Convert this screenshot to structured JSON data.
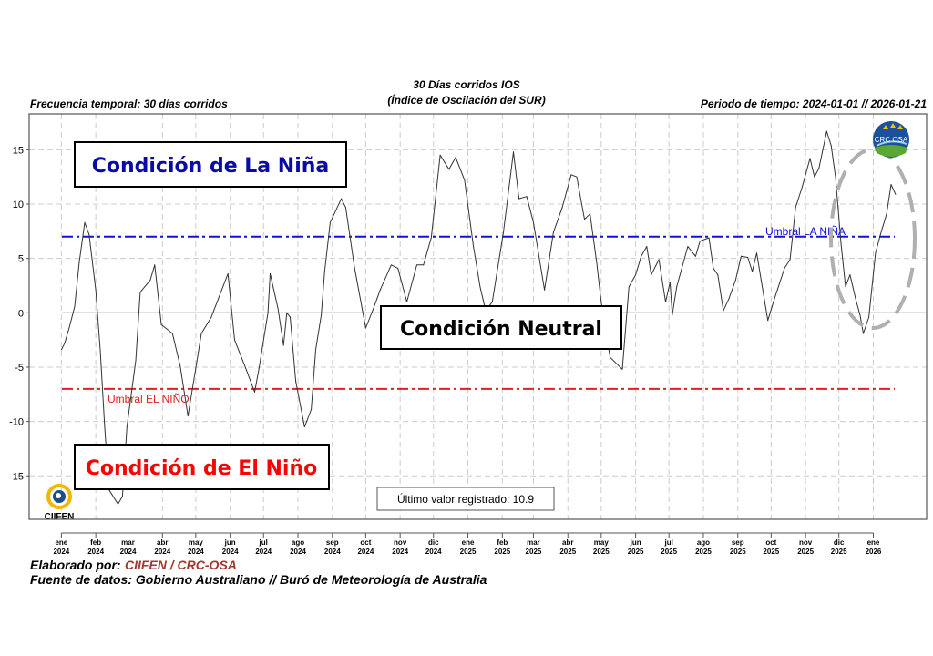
{
  "header": {
    "title_line1": "30 Días corridos IOS",
    "title_line2": "(Índice de Oscilación del SUR)",
    "left": "Frecuencia temporal: 30 días corridos",
    "right": "Periodo de tiempo: 2024-01-01 // 2026-01-21"
  },
  "annotations": {
    "la_nina": "Condición de La Niña",
    "neutral": "Condición Neutral",
    "el_nino": "Condición de El Niño",
    "umbral_la_nina": "Umbral LA NIÑA",
    "umbral_el_nino": "Umbral EL NIÑO",
    "last_value": "Último valor registrado: 10.9"
  },
  "logos": {
    "ciifen": "CIIFEN",
    "crc_osa": "CRC OSA"
  },
  "footer": {
    "elaborado_label": "Elaborado por:",
    "elaborado_value": "CIIFEN / CRC-OSA",
    "fuente": "Fuente de datos: Gobierno Australiano // Buró de Meteorología de Australia"
  },
  "colors": {
    "line": "#333333",
    "la_nina": "#1010e0",
    "el_nino": "#e02020",
    "la_nina_text": "#0a0aa8",
    "el_nino_text": "#ff0000",
    "footer_accent": "#a0392b",
    "highlight_ellipse": "#b0b0b0"
  },
  "chart_data": {
    "type": "line",
    "title": "30 Días corridos IOS (Índice de Oscilación del SUR)",
    "ylim": [
      -19,
      18.3
    ],
    "xlim": [
      "2023-12-03",
      "2026-02-18"
    ],
    "grid": true,
    "yticks": [
      -15,
      -10,
      -5,
      0,
      5,
      10,
      15
    ],
    "xticks": [
      {
        "date": "2024-01-01",
        "month": "ene",
        "year": "2024"
      },
      {
        "date": "2024-02-01",
        "month": "feb",
        "year": "2024"
      },
      {
        "date": "2024-03-01",
        "month": "mar",
        "year": "2024"
      },
      {
        "date": "2024-04-01",
        "month": "abr",
        "year": "2024"
      },
      {
        "date": "2024-05-01",
        "month": "may",
        "year": "2024"
      },
      {
        "date": "2024-06-01",
        "month": "jun",
        "year": "2024"
      },
      {
        "date": "2024-07-01",
        "month": "jul",
        "year": "2024"
      },
      {
        "date": "2024-08-01",
        "month": "ago",
        "year": "2024"
      },
      {
        "date": "2024-09-01",
        "month": "sep",
        "year": "2024"
      },
      {
        "date": "2024-10-01",
        "month": "oct",
        "year": "2024"
      },
      {
        "date": "2024-11-01",
        "month": "nov",
        "year": "2024"
      },
      {
        "date": "2024-12-01",
        "month": "dic",
        "year": "2024"
      },
      {
        "date": "2025-01-01",
        "month": "ene",
        "year": "2025"
      },
      {
        "date": "2025-02-01",
        "month": "feb",
        "year": "2025"
      },
      {
        "date": "2025-03-01",
        "month": "mar",
        "year": "2025"
      },
      {
        "date": "2025-04-01",
        "month": "abr",
        "year": "2025"
      },
      {
        "date": "2025-05-01",
        "month": "may",
        "year": "2025"
      },
      {
        "date": "2025-06-01",
        "month": "jun",
        "year": "2025"
      },
      {
        "date": "2025-07-01",
        "month": "jul",
        "year": "2025"
      },
      {
        "date": "2025-08-01",
        "month": "ago",
        "year": "2025"
      },
      {
        "date": "2025-09-01",
        "month": "sep",
        "year": "2025"
      },
      {
        "date": "2025-10-01",
        "month": "oct",
        "year": "2025"
      },
      {
        "date": "2025-11-01",
        "month": "nov",
        "year": "2025"
      },
      {
        "date": "2025-12-01",
        "month": "dic",
        "year": "2025"
      },
      {
        "date": "2026-01-01",
        "month": "ene",
        "year": "2026"
      }
    ],
    "thresholds": [
      {
        "name": "Umbral LA NIÑA",
        "value": 7
      },
      {
        "name": "Umbral EL NIÑO",
        "value": -7
      }
    ],
    "series": [
      {
        "x": [
          "2024-01-01",
          "2024-01-04",
          "2024-01-08",
          "2024-01-13",
          "2024-01-17",
          "2024-01-22",
          "2024-01-26",
          "2024-02-01",
          "2024-02-05",
          "2024-02-09",
          "2024-02-13",
          "2024-02-21",
          "2024-02-25",
          "2024-02-29",
          "2024-03-08",
          "2024-03-12",
          "2024-03-21",
          "2024-03-25",
          "2024-03-31",
          "2024-04-10",
          "2024-04-17",
          "2024-04-24",
          "2024-05-01",
          "2024-05-06",
          "2024-05-15",
          "2024-05-30",
          "2024-06-05",
          "2024-06-15",
          "2024-06-23",
          "2024-06-27",
          "2024-07-05",
          "2024-07-07",
          "2024-07-14",
          "2024-07-19",
          "2024-07-22",
          "2024-07-25",
          "2024-07-30",
          "2024-08-07",
          "2024-08-13",
          "2024-08-17",
          "2024-08-22",
          "2024-08-25",
          "2024-08-30",
          "2024-09-09",
          "2024-09-13",
          "2024-09-21",
          "2024-10-01",
          "2024-10-08",
          "2024-10-14",
          "2024-10-24",
          "2024-10-30",
          "2024-11-07",
          "2024-11-16",
          "2024-11-22",
          "2024-11-29",
          "2024-12-07",
          "2024-12-15",
          "2024-12-21",
          "2024-12-29",
          "2025-01-06",
          "2025-01-12",
          "2025-01-17",
          "2025-01-23",
          "2025-02-02",
          "2025-02-11",
          "2025-02-16",
          "2025-02-23",
          "2025-03-01",
          "2025-03-11",
          "2025-03-19",
          "2025-03-27",
          "2025-04-04",
          "2025-04-09",
          "2025-04-16",
          "2025-04-21",
          "2025-04-27",
          "2025-05-01",
          "2025-05-09",
          "2025-05-20",
          "2025-05-26",
          "2025-06-01",
          "2025-06-06",
          "2025-06-11",
          "2025-06-15",
          "2025-06-22",
          "2025-06-28",
          "2025-07-02",
          "2025-07-04",
          "2025-07-08",
          "2025-07-18",
          "2025-07-25",
          "2025-07-29",
          "2025-08-06",
          "2025-08-10",
          "2025-08-14",
          "2025-08-19",
          "2025-08-24",
          "2025-08-30",
          "2025-09-04",
          "2025-09-10",
          "2025-09-14",
          "2025-09-18",
          "2025-09-22",
          "2025-09-28",
          "2025-10-04",
          "2025-10-13",
          "2025-10-18",
          "2025-10-23",
          "2025-10-29",
          "2025-11-05",
          "2025-11-09",
          "2025-11-13",
          "2025-11-20",
          "2025-11-24",
          "2025-11-28",
          "2025-12-03",
          "2025-12-07",
          "2025-12-11",
          "2025-12-16",
          "2025-12-20",
          "2025-12-23",
          "2025-12-28",
          "2026-01-03",
          "2026-01-08",
          "2026-01-13",
          "2026-01-17",
          "2026-01-21"
        ],
        "y": [
          -3.4,
          -2.8,
          -1.4,
          0.6,
          4.6,
          8.3,
          7.2,
          2.1,
          -3.4,
          -10.5,
          -16.3,
          -17.6,
          -16.9,
          -10.5,
          -4.4,
          1.9,
          3.0,
          4.4,
          -1.1,
          -1.9,
          -4.9,
          -9.5,
          -5.1,
          -1.9,
          -0.4,
          3.6,
          -2.5,
          -5.1,
          -7.3,
          -5.1,
          0,
          3.6,
          0.4,
          -3.0,
          0,
          -0.4,
          -6.3,
          -10.5,
          -8.9,
          -3.4,
          -0.2,
          3.8,
          8.3,
          10.5,
          9.7,
          4.1,
          -1.4,
          0.4,
          2.1,
          4.4,
          4.1,
          1.0,
          4.4,
          4.4,
          6.9,
          14.5,
          13.2,
          14.3,
          12.2,
          6.1,
          2.4,
          0.2,
          1.0,
          7.4,
          14.8,
          10.5,
          10.7,
          8.3,
          2.1,
          7.4,
          9.7,
          12.7,
          12.5,
          8.6,
          9.1,
          4.6,
          1.0,
          -4.1,
          -5.2,
          2.4,
          3.5,
          5.2,
          6.1,
          3.5,
          4.9,
          1.0,
          2.8,
          -0.2,
          2.4,
          6.1,
          5.2,
          6.6,
          6.9,
          4.1,
          3.5,
          0.2,
          1.3,
          3.0,
          5.2,
          5.1,
          3.8,
          5.5,
          3.0,
          -0.7,
          1.3,
          4.1,
          4.9,
          9.7,
          11.6,
          14.2,
          12.5,
          13.3,
          16.7,
          15.4,
          12.5,
          6.3,
          2.4,
          3.5,
          1.3,
          -0.2,
          -1.9,
          -0.4,
          5.5,
          7.4,
          9.1,
          11.8,
          10.9
        ]
      }
    ]
  }
}
